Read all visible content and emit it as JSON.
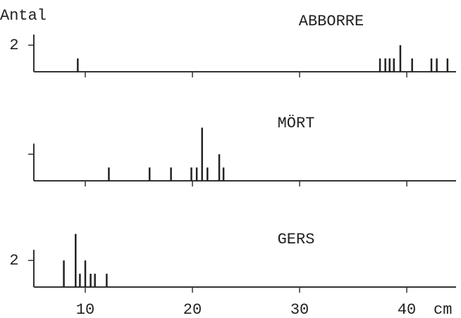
{
  "chart_data": [
    {
      "type": "spike",
      "title": "ABBORRE",
      "ylabel": "Antal",
      "x": [
        9.3,
        37.5,
        38.0,
        38.4,
        38.8,
        39.4,
        40.5,
        42.3,
        42.8,
        43.8
      ],
      "values": [
        1,
        1,
        1,
        1,
        1,
        2,
        1,
        1,
        1,
        1
      ],
      "xlim": [
        5.2,
        44.6
      ],
      "ylim": [
        0,
        4.5
      ],
      "xticks": [
        10,
        20,
        30,
        40
      ],
      "yticks": [
        2
      ],
      "show_xtick_labels": false,
      "show_ytick_labels": true
    },
    {
      "type": "spike",
      "title": "MÖRT",
      "x": [
        12.2,
        16.0,
        18.0,
        19.9,
        20.4,
        20.9,
        21.4,
        22.5,
        22.9
      ],
      "values": [
        1,
        1,
        1,
        1,
        1,
        4,
        1,
        2,
        1
      ],
      "xlim": [
        5.2,
        44.6
      ],
      "ylim": [
        0,
        4.5
      ],
      "xticks": [
        10,
        20,
        30,
        40
      ],
      "yticks": [
        2
      ],
      "show_xtick_labels": false,
      "show_ytick_labels": false
    },
    {
      "type": "spike",
      "title": "GERS",
      "xlabel": "cm",
      "x": [
        8.0,
        9.1,
        9.5,
        10.0,
        10.5,
        10.9,
        12.0
      ],
      "values": [
        2,
        4,
        1,
        2,
        1,
        1,
        1
      ],
      "xlim": [
        5.2,
        44.6
      ],
      "ylim": [
        0,
        4.5
      ],
      "xticks": [
        10,
        20,
        30,
        40
      ],
      "yticks": [
        2
      ],
      "show_xtick_labels": true,
      "show_ytick_labels": true
    }
  ]
}
